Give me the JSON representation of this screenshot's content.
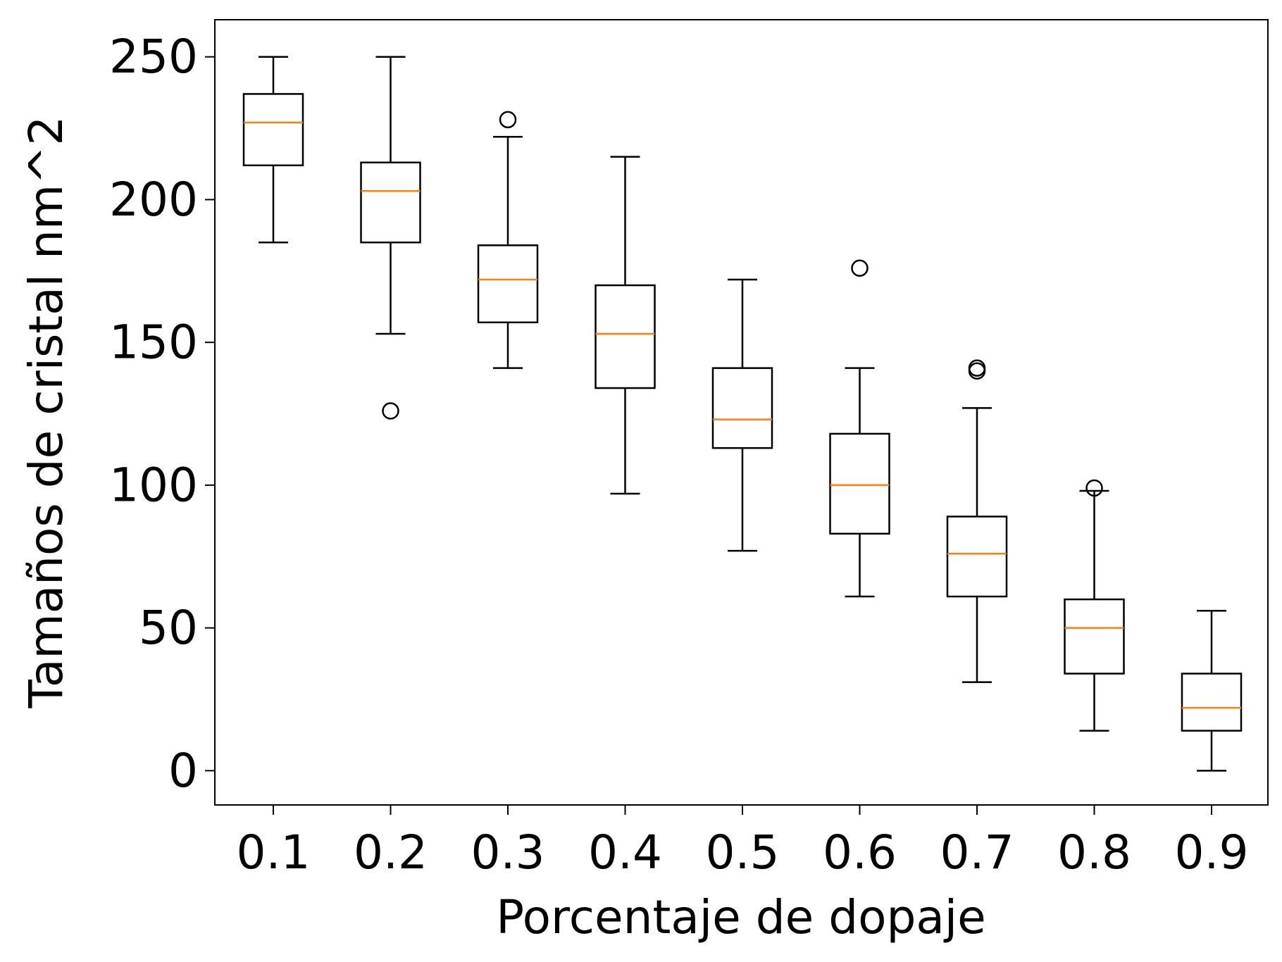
{
  "chart_data": {
    "type": "box",
    "title": "",
    "xlabel": "Porcentaje de dopaje",
    "ylabel": "Tamaños de cristal nm^2",
    "ylim": [
      -12,
      263
    ],
    "yticks": [
      0,
      50,
      100,
      150,
      200,
      250
    ],
    "grid": false,
    "legend": "none",
    "colors": {
      "box": "#000000",
      "median": "#ff7f0e",
      "flier": "#000000"
    },
    "categories": [
      "0.1",
      "0.2",
      "0.3",
      "0.4",
      "0.5",
      "0.6",
      "0.7",
      "0.8",
      "0.9"
    ],
    "boxes": [
      {
        "label": "0.1",
        "whisker_low": 185,
        "q1": 212,
        "median": 227,
        "q3": 237,
        "whisker_high": 250,
        "fliers": []
      },
      {
        "label": "0.2",
        "whisker_low": 153,
        "q1": 185,
        "median": 203,
        "q3": 213,
        "whisker_high": 250,
        "fliers": [
          126
        ]
      },
      {
        "label": "0.3",
        "whisker_low": 141,
        "q1": 157,
        "median": 172,
        "q3": 184,
        "whisker_high": 222,
        "fliers": [
          228
        ]
      },
      {
        "label": "0.4",
        "whisker_low": 97,
        "q1": 134,
        "median": 153,
        "q3": 170,
        "whisker_high": 215,
        "fliers": []
      },
      {
        "label": "0.5",
        "whisker_low": 77,
        "q1": 113,
        "median": 123,
        "q3": 141,
        "whisker_high": 172,
        "fliers": []
      },
      {
        "label": "0.6",
        "whisker_low": 61,
        "q1": 83,
        "median": 100,
        "q3": 118,
        "whisker_high": 141,
        "fliers": [
          176
        ]
      },
      {
        "label": "0.7",
        "whisker_low": 31,
        "q1": 61,
        "median": 76,
        "q3": 89,
        "whisker_high": 127,
        "fliers": [
          140,
          141
        ]
      },
      {
        "label": "0.8",
        "whisker_low": 14,
        "q1": 34,
        "median": 50,
        "q3": 60,
        "whisker_high": 98,
        "fliers": [
          99
        ]
      },
      {
        "label": "0.9",
        "whisker_low": 0,
        "q1": 14,
        "median": 22,
        "q3": 34,
        "whisker_high": 56,
        "fliers": []
      }
    ]
  }
}
